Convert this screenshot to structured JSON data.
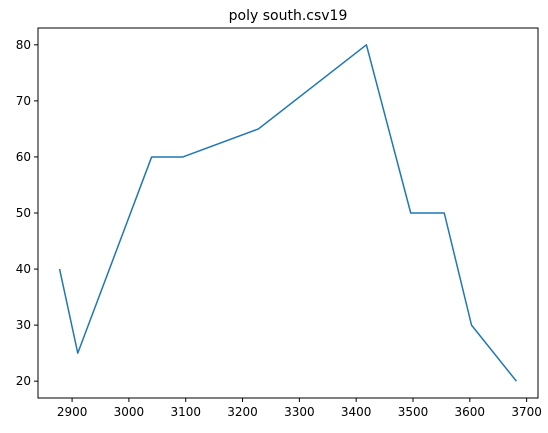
{
  "chart_data": {
    "type": "line",
    "title": "poly south.csv19",
    "xlabel": "",
    "ylabel": "",
    "xlim": [
      2840,
      3720
    ],
    "ylim": [
      17,
      83
    ],
    "xticks": [
      2900,
      3000,
      3100,
      3200,
      3300,
      3400,
      3500,
      3600,
      3700
    ],
    "yticks": [
      20,
      30,
      40,
      50,
      60,
      70,
      80
    ],
    "grid": false,
    "series": [
      {
        "color": "#1f77b4",
        "points": [
          [
            2878,
            40
          ],
          [
            2910,
            25
          ],
          [
            3040,
            60
          ],
          [
            3095,
            60
          ],
          [
            3228,
            65
          ],
          [
            3418,
            80
          ],
          [
            3496,
            50
          ],
          [
            3555,
            50
          ],
          [
            3603,
            30
          ],
          [
            3682,
            20
          ]
        ]
      }
    ]
  }
}
